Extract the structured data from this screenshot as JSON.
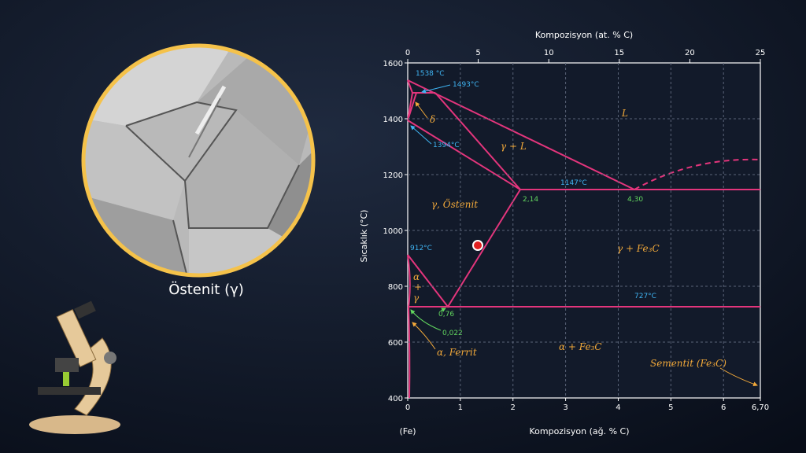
{
  "diagram": {
    "axes": {
      "x_bottom": {
        "label": "Kompozisyon (ağ. % C)",
        "lim": [
          0,
          6.7
        ],
        "ticks": [
          0,
          1,
          2,
          3,
          4,
          5,
          6,
          {
            "value": 6.7,
            "label": "6,70"
          }
        ]
      },
      "x_top": {
        "label": "Kompozisyon (at. % C)",
        "lim": [
          0,
          25
        ],
        "ticks": [
          0,
          5,
          10,
          15,
          20,
          25
        ]
      },
      "y": {
        "label": "Sıcaklık (°C)",
        "lim": [
          400,
          1600
        ],
        "ticks": [
          400,
          600,
          800,
          1000,
          1200,
          1400,
          1600
        ]
      }
    },
    "fe_label": "(Fe)",
    "temperatures": {
      "t1538": "1538 °C",
      "t1493": "1493°C",
      "t1394": "1394°C",
      "t1147": "1147°C",
      "t912": "912°C",
      "t727": "727°C"
    },
    "compositions": {
      "c214": "2,14",
      "c430": "4,30",
      "c076": "0,76",
      "c0022": "0,022"
    },
    "phases": {
      "delta": "δ",
      "gamma_l": "γ + L",
      "liquid": "L",
      "austenite": "γ, Östenit",
      "gamma_fe3c": "γ + Fe₃C",
      "alpha": "α",
      "plus": "+",
      "gamma": "γ",
      "alpha_fe3c": "α + Fe₃C",
      "ferrite": "α, Ferrit",
      "cementite": "Sementit (Fe₃C)"
    },
    "caption": "Östenit (γ)"
  }
}
